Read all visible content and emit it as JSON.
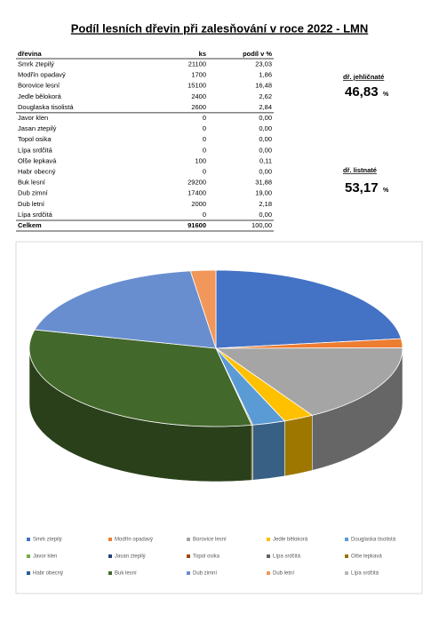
{
  "title": "Podíl lesních dřevin při zalesňování v roce 2022 - LMN",
  "table": {
    "headers": [
      "dřevina",
      "ks",
      "podíl v %"
    ],
    "rows": [
      {
        "name": "Smrk ztepilý",
        "ks": 21100,
        "share": "23,03"
      },
      {
        "name": "Modřín opadavý",
        "ks": 1700,
        "share": "1,86"
      },
      {
        "name": "Borovice lesní",
        "ks": 15100,
        "share": "16,48"
      },
      {
        "name": "Jedle bělokorá",
        "ks": 2400,
        "share": "2,62"
      },
      {
        "name": "Douglaska tisolistá",
        "ks": 2600,
        "share": "2,84"
      },
      {
        "name": "Javor klen",
        "ks": 0,
        "share": "0,00"
      },
      {
        "name": "Jasan ztepilý",
        "ks": 0,
        "share": "0,00"
      },
      {
        "name": "Topol osika",
        "ks": 0,
        "share": "0,00"
      },
      {
        "name": "Lípa srdčitá",
        "ks": 0,
        "share": "0,00"
      },
      {
        "name": "Olše lepkavá",
        "ks": 100,
        "share": "0,11"
      },
      {
        "name": "Habr obecný",
        "ks": 0,
        "share": "0,00"
      },
      {
        "name": "Buk lesní",
        "ks": 29200,
        "share": "31,88"
      },
      {
        "name": "Dub zimní",
        "ks": 17400,
        "share": "19,00"
      },
      {
        "name": "Dub letní",
        "ks": 2000,
        "share": "2,18"
      },
      {
        "name": "Lípa srdčitá",
        "ks": 0,
        "share": "0,00"
      }
    ],
    "total": {
      "name": "Celkem",
      "ks": 91600,
      "share": "100,00"
    }
  },
  "summary": [
    {
      "label": "dř. jehličnaté",
      "value": "46,83",
      "unit": "%"
    },
    {
      "label": "dř. listnaté",
      "value": "53,17",
      "unit": "%"
    }
  ],
  "chart": {
    "type": "pie",
    "colors": [
      "#4472c4",
      "#ed7d31",
      "#a5a5a5",
      "#ffc000",
      "#5b9bd5",
      "#70ad47",
      "#264478",
      "#9e480e",
      "#636363",
      "#997300",
      "#255e91",
      "#43682b",
      "#698ed0",
      "#f1975a",
      "#b7b7b7"
    ]
  }
}
